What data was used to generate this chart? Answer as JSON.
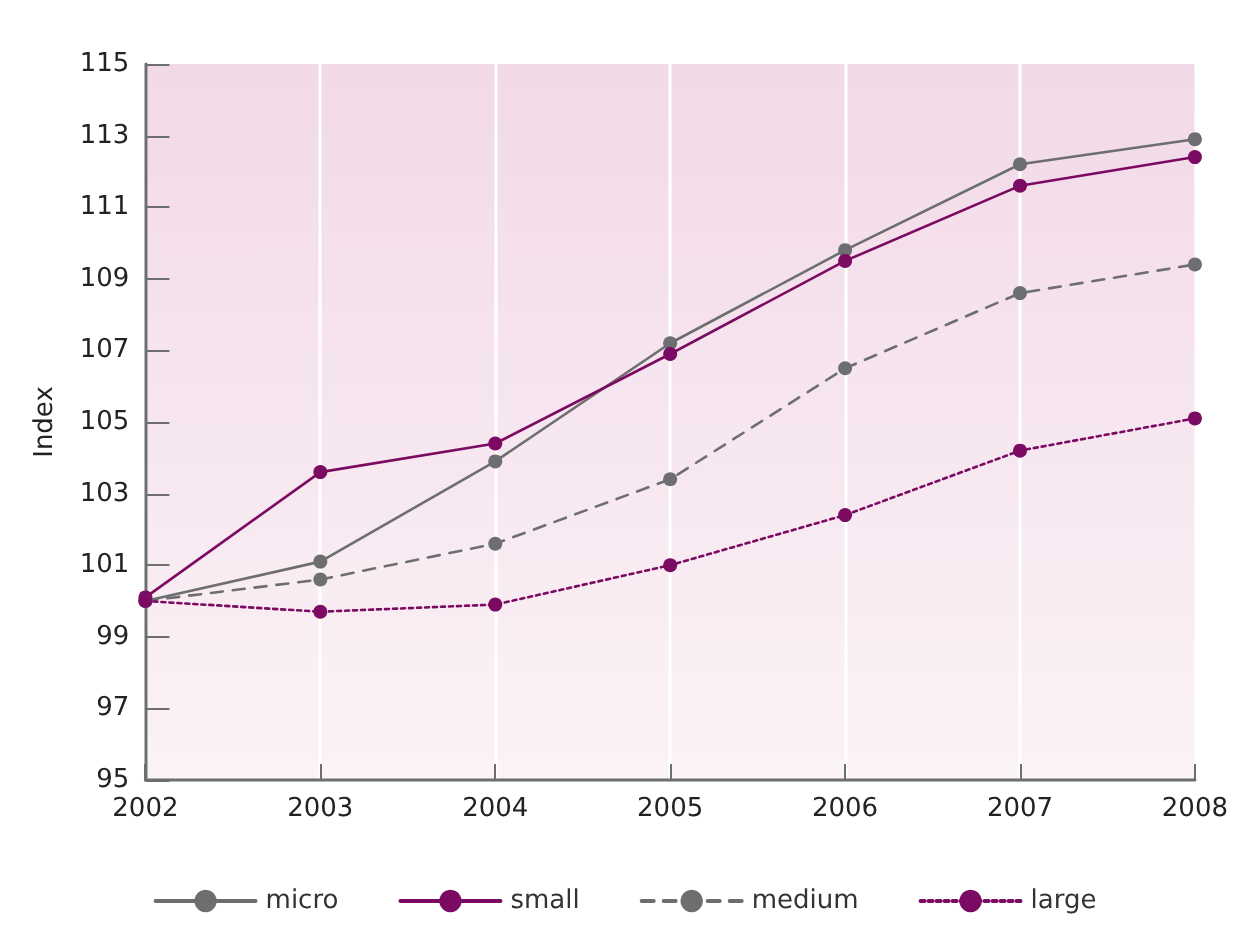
{
  "chart_data": {
    "type": "line",
    "ylabel": "Index",
    "x": [
      2002,
      2003,
      2004,
      2005,
      2006,
      2007,
      2008
    ],
    "xlim": [
      2002,
      2008
    ],
    "xticks": [
      2002,
      2003,
      2004,
      2005,
      2006,
      2007,
      2008
    ],
    "ylim": [
      95,
      115
    ],
    "yticks": [
      95,
      97,
      99,
      101,
      103,
      105,
      107,
      109,
      111,
      113,
      115
    ],
    "grid": "x",
    "legend": "bottom",
    "marker": "circle",
    "series": [
      {
        "name": "micro",
        "color": "#6d6e70",
        "line_style": "solid",
        "values": [
          100,
          101.1,
          103.9,
          107.2,
          109.8,
          112.2,
          112.9
        ]
      },
      {
        "name": "small",
        "color": "#7b0a63",
        "line_style": "solid",
        "values": [
          100.1,
          103.6,
          104.4,
          106.9,
          109.5,
          111.6,
          112.4
        ]
      },
      {
        "name": "medium",
        "color": "#6d6e70",
        "line_style": "dashed",
        "values": [
          100,
          100.6,
          101.6,
          103.4,
          106.5,
          108.6,
          109.4
        ]
      },
      {
        "name": "large",
        "color": "#7b0a63",
        "line_style": "dotted",
        "values": [
          100,
          99.7,
          99.9,
          101.0,
          102.4,
          104.2,
          105.1
        ]
      }
    ]
  }
}
